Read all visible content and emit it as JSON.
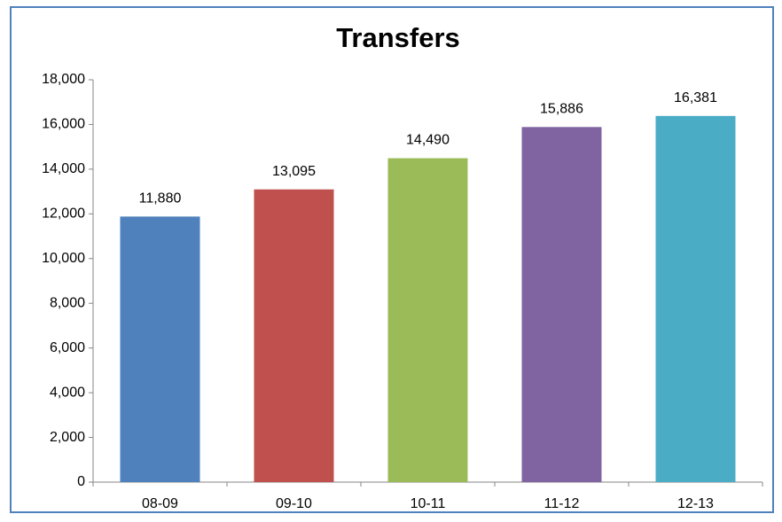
{
  "chart_data": {
    "type": "bar",
    "title": "Transfers",
    "categories": [
      "08-09",
      "09-10",
      "10-11",
      "11-12",
      "12-13"
    ],
    "values": [
      11880,
      13095,
      14490,
      15886,
      16381
    ],
    "value_labels": [
      "11,880",
      "13,095",
      "14,490",
      "15,886",
      "16,381"
    ],
    "colors": [
      "#4f81bd",
      "#c0504d",
      "#9bbb59",
      "#8064a2",
      "#4bacc6"
    ],
    "ylim": [
      0,
      18000
    ],
    "yticks": [
      0,
      {
        "value": 2000,
        "label": "2,000"
      },
      {
        "value": 4000,
        "label": "4,000"
      },
      {
        "value": 6000,
        "label": "6,000"
      },
      {
        "value": 8000,
        "label": "8,000"
      },
      {
        "value": 10000,
        "label": "10,000"
      },
      {
        "value": 12000,
        "label": "12,000"
      },
      {
        "value": 14000,
        "label": "14,000"
      },
      {
        "value": 16000,
        "label": "16,000"
      },
      {
        "value": 18000,
        "label": "18,000"
      }
    ],
    "grid": false
  }
}
